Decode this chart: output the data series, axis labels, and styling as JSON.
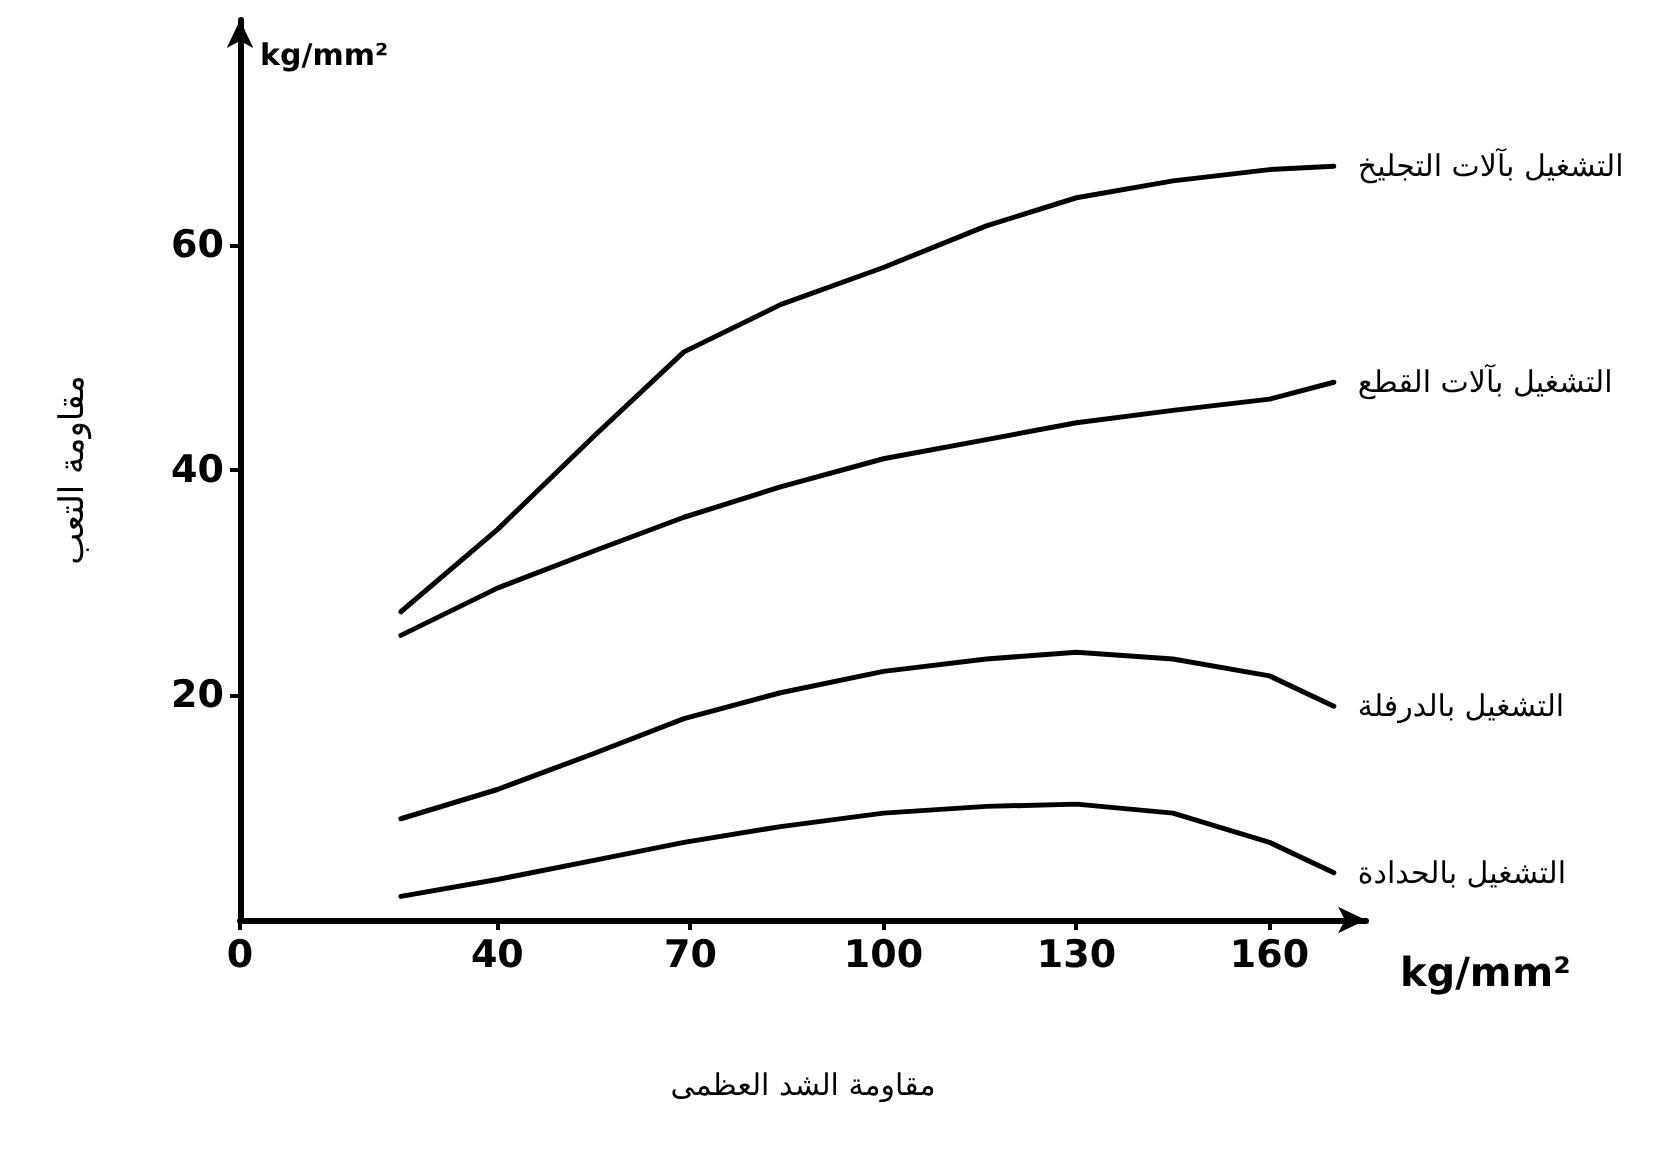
{
  "chart_data": {
    "type": "line",
    "xlabel": "مقاومة الشد العظمى",
    "ylabel": "مقاومة التعب",
    "annotations": [
      "kg/mm²",
      "kg/mm²"
    ],
    "xlim": [
      0,
      175
    ],
    "xticks": [
      0,
      40,
      70,
      100,
      130,
      160
    ],
    "ylim": [
      0,
      80
    ],
    "yticks": [
      20,
      40,
      60
    ],
    "grid": false,
    "legend": false,
    "marker": "none",
    "line_style": "solid",
    "x": [
      25,
      40,
      55,
      69,
      84,
      100,
      116,
      130,
      145,
      160,
      170
    ],
    "series": [
      {
        "name": "التشغيل بآلات التجليخ",
        "color": "#000000",
        "values": [
          27.4,
          34.7,
          43,
          50.5,
          54.7,
          58,
          61.7,
          64.2,
          65.7,
          66.7,
          67
        ]
      },
      {
        "name": "التشغيل بآلات القطع",
        "color": "#000000",
        "values": [
          25.3,
          29.5,
          32.8,
          35.8,
          38.5,
          41,
          42.7,
          44.2,
          45.3,
          46.3,
          47.8
        ]
      },
      {
        "name": "التشغيل بالدرفلة",
        "color": "#000000",
        "values": [
          9,
          11.6,
          14.8,
          17.9,
          20.2,
          22.1,
          23.2,
          23.8,
          23.2,
          21.7,
          19
        ]
      },
      {
        "name": "التشغيل بالحدادة",
        "color": "#000000",
        "values": [
          2.1,
          3.6,
          5.3,
          6.9,
          8.3,
          9.5,
          10.1,
          10.3,
          9.5,
          6.9,
          4.2
        ]
      }
    ]
  }
}
